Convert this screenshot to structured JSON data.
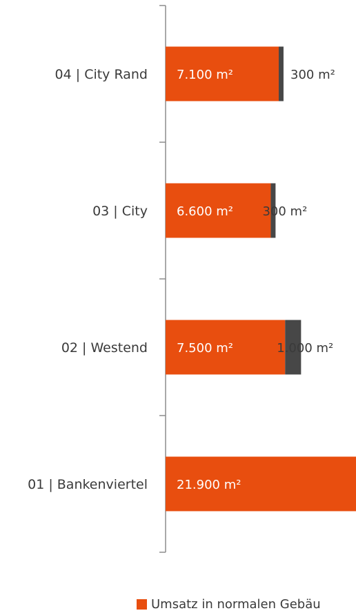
{
  "chart_data": {
    "type": "bar",
    "orientation": "horizontal",
    "stacked": true,
    "categories": [
      "04 | City Rand",
      "03 | City",
      "02 | Westend",
      "01 | Bankenviertel"
    ],
    "series": [
      {
        "name": "Umsatz in normalen Gebäu",
        "color": "#e84e0f",
        "values": [
          7100,
          6600,
          7500,
          21900
        ],
        "labels": [
          "7.100 m²",
          "6.600 m²",
          "7.500 m²",
          "21.900 m²"
        ]
      },
      {
        "color": "#474747",
        "values": [
          300,
          300,
          1000,
          0
        ],
        "labels": [
          "300 m²",
          "300 m²",
          "1.000 m²",
          ""
        ]
      }
    ],
    "legend_position": "bottom",
    "grid": false
  }
}
